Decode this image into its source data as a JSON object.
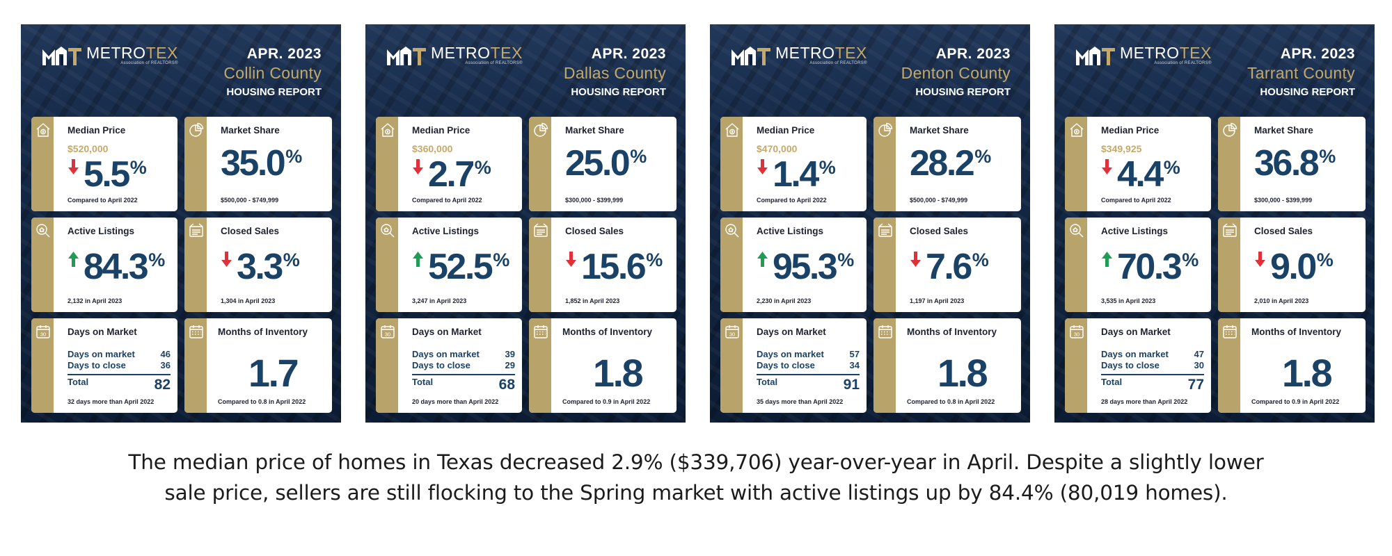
{
  "brand": {
    "name_part1": "METRO",
    "name_part2": "TEX",
    "association": "Association of REALTORS®",
    "accent_color": "#c4a96b",
    "navy_color": "#1a4266"
  },
  "cards": [
    {
      "month": "APR. 2023",
      "county": "Collin County",
      "report": "HOUSING REPORT",
      "median_price": {
        "title": "Median Price",
        "price": "$520,000",
        "direction": "down",
        "value": "5.5",
        "unit": "%",
        "note": "Compared to April 2022"
      },
      "market_share": {
        "title": "Market Share",
        "value": "35.0",
        "unit": "%",
        "note": "$500,000 - $749,999"
      },
      "active_listings": {
        "title": "Active Listings",
        "direction": "up",
        "value": "84.3",
        "unit": "%",
        "note": "2,132 in April 2023"
      },
      "closed_sales": {
        "title": "Closed Sales",
        "direction": "down",
        "value": "3.3",
        "unit": "%",
        "note": "1,304 in April 2023"
      },
      "days_on_market": {
        "title": "Days on Market",
        "calendar_day": "30",
        "row1_label": "Days on market",
        "row1_value": "46",
        "row2_label": "Days to close",
        "row2_value": "36",
        "total_label": "Total",
        "total_value": "82",
        "note": "32 days more than April 2022"
      },
      "months_inventory": {
        "title": "Months of Inventory",
        "value": "1.7",
        "note": "Compared to 0.8 in April 2022"
      }
    },
    {
      "month": "APR. 2023",
      "county": "Dallas County",
      "report": "HOUSING REPORT",
      "median_price": {
        "title": "Median Price",
        "price": "$360,000",
        "direction": "down",
        "value": "2.7",
        "unit": "%",
        "note": "Compared to April 2022"
      },
      "market_share": {
        "title": "Market Share",
        "value": "25.0",
        "unit": "%",
        "note": "$300,000 - $399,999"
      },
      "active_listings": {
        "title": "Active Listings",
        "direction": "up",
        "value": "52.5",
        "unit": "%",
        "note": "3,247 in April 2023"
      },
      "closed_sales": {
        "title": "Closed Sales",
        "direction": "down",
        "value": "15.6",
        "unit": "%",
        "note": "1,852 in April 2023"
      },
      "days_on_market": {
        "title": "Days on Market",
        "calendar_day": "30",
        "row1_label": "Days on market",
        "row1_value": "39",
        "row2_label": "Days to close",
        "row2_value": "29",
        "total_label": "Total",
        "total_value": "68",
        "note": "20 days more than April 2022"
      },
      "months_inventory": {
        "title": "Months of Inventory",
        "value": "1.8",
        "note": "Compared to 0.9 in April 2022"
      }
    },
    {
      "month": "APR. 2023",
      "county": "Denton County",
      "report": "HOUSING REPORT",
      "median_price": {
        "title": "Median Price",
        "price": "$470,000",
        "direction": "down",
        "value": "1.4",
        "unit": "%",
        "note": "Compared to April 2022"
      },
      "market_share": {
        "title": "Market Share",
        "value": "28.2",
        "unit": "%",
        "note": "$500,000 - $749,999"
      },
      "active_listings": {
        "title": "Active Listings",
        "direction": "up",
        "value": "95.3",
        "unit": "%",
        "note": "2,230 in April 2023"
      },
      "closed_sales": {
        "title": "Closed Sales",
        "direction": "down",
        "value": "7.6",
        "unit": "%",
        "note": "1,197 in April 2023"
      },
      "days_on_market": {
        "title": "Days on Market",
        "calendar_day": "30",
        "row1_label": "Days on market",
        "row1_value": "57",
        "row2_label": "Days to close",
        "row2_value": "34",
        "total_label": "Total",
        "total_value": "91",
        "note": "35 days more than April 2022"
      },
      "months_inventory": {
        "title": "Months of Inventory",
        "value": "1.8",
        "note": "Compared to 0.8 in April 2022"
      }
    },
    {
      "month": "APR. 2023",
      "county": "Tarrant County",
      "report": "HOUSING REPORT",
      "median_price": {
        "title": "Median Price",
        "price": "$349,925",
        "direction": "down",
        "value": "4.4",
        "unit": "%",
        "note": "Compared to April 2022"
      },
      "market_share": {
        "title": "Market Share",
        "value": "36.8",
        "unit": "%",
        "note": "$300,000 - $399,999"
      },
      "active_listings": {
        "title": "Active Listings",
        "direction": "up",
        "value": "70.3",
        "unit": "%",
        "note": "3,535 in April 2023"
      },
      "closed_sales": {
        "title": "Closed Sales",
        "direction": "down",
        "value": "9.0",
        "unit": "%",
        "note": "2,010 in April 2023"
      },
      "days_on_market": {
        "title": "Days on Market",
        "calendar_day": "30",
        "row1_label": "Days on market",
        "row1_value": "47",
        "row2_label": "Days to close",
        "row2_value": "30",
        "total_label": "Total",
        "total_value": "77",
        "note": "28 days more than April 2022"
      },
      "months_inventory": {
        "title": "Months of Inventory",
        "value": "1.8",
        "note": "Compared to 0.9 in April 2022"
      }
    }
  ],
  "caption": {
    "line1": "The median price of homes in Texas decreased 2.9% ($339,706) year-over-year in April. Despite a slightly lower",
    "line2": "sale price, sellers are still flocking to the Spring market with active listings up by 84.4% (80,019 homes)."
  }
}
